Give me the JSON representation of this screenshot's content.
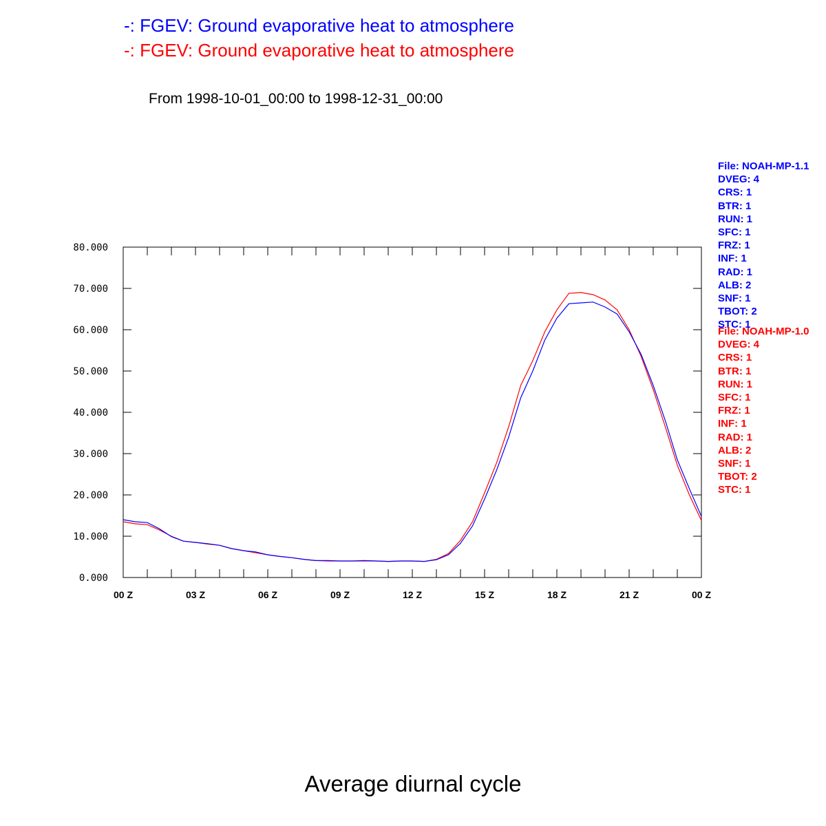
{
  "legend": [
    {
      "text": "-: FGEV: Ground evaporative heat to atmosphere",
      "color": "#0000ff"
    },
    {
      "text": "-: FGEV: Ground evaporative heat to atmosphere",
      "color": "#ff0000"
    }
  ],
  "period": "From 1998-10-01_00:00 to 1998-12-31_00:00",
  "meta_blue": [
    "File: NOAH-MP-1.1",
    "DVEG: 4",
    "CRS: 1",
    "BTR: 1",
    "RUN: 1",
    "SFC: 1",
    "FRZ: 1",
    "INF: 1",
    "RAD: 1",
    "ALB: 2",
    "SNF: 1",
    "TBOT: 2",
    "STC: 1"
  ],
  "meta_red": [
    "File: NOAH-MP-1.0",
    "DVEG: 4",
    "CRS: 1",
    "BTR: 1",
    "RUN: 1",
    "SFC: 1",
    "FRZ: 1",
    "INF: 1",
    "RAD: 1",
    "ALB: 2",
    "SNF: 1",
    "TBOT: 2",
    "STC: 1"
  ],
  "bottom_title": "Average diurnal cycle",
  "chart_data": {
    "type": "line",
    "x_unit": "hour",
    "xlim": [
      0,
      24
    ],
    "ylim": [
      0,
      80
    ],
    "grid": false,
    "yticks": [
      "0.000",
      "10.000",
      "20.000",
      "30.000",
      "40.000",
      "50.000",
      "60.000",
      "70.000",
      "80.000"
    ],
    "xticks": [
      "00 Z",
      "03 Z",
      "06 Z",
      "09 Z",
      "12 Z",
      "15 Z",
      "18 Z",
      "21 Z",
      "00 Z"
    ],
    "x": [
      0,
      0.5,
      1,
      1.5,
      2,
      2.5,
      3,
      3.5,
      4,
      4.5,
      5,
      5.5,
      6,
      6.5,
      7,
      7.5,
      8,
      8.5,
      9,
      9.5,
      10,
      10.5,
      11,
      11.5,
      12,
      12.5,
      13,
      13.5,
      14,
      14.5,
      15,
      15.5,
      16,
      16.5,
      17,
      17.5,
      18,
      18.5,
      19,
      19.5,
      20,
      20.5,
      21,
      21.5,
      22,
      22.5,
      23,
      23.5,
      24
    ],
    "series": [
      {
        "color": "#0000ff",
        "values": [
          14.0,
          13.5,
          13.3,
          11.8,
          9.9,
          8.8,
          8.5,
          8.2,
          7.8,
          7.0,
          6.5,
          6.2,
          5.5,
          5.1,
          4.8,
          4.4,
          4.1,
          4.1,
          4.0,
          4.0,
          4.1,
          4.0,
          3.9,
          4.0,
          4.0,
          3.9,
          4.3,
          5.5,
          8.3,
          12.5,
          19.0,
          26.0,
          34.0,
          43.5,
          50.0,
          57.5,
          62.8,
          66.3,
          66.5,
          66.7,
          65.5,
          63.8,
          59.5,
          54.0,
          46.5,
          38.0,
          28.5,
          21.5,
          14.8
        ]
      },
      {
        "color": "#ff0000",
        "values": [
          13.5,
          13.0,
          12.8,
          11.5,
          10.0,
          8.8,
          8.5,
          8.1,
          7.8,
          7.0,
          6.5,
          6.0,
          5.5,
          5.1,
          4.8,
          4.4,
          4.1,
          4.0,
          4.0,
          4.0,
          4.0,
          4.0,
          3.9,
          4.0,
          4.0,
          3.9,
          4.4,
          5.8,
          9.0,
          13.5,
          20.5,
          27.8,
          36.5,
          46.5,
          52.5,
          59.5,
          64.8,
          68.8,
          69.0,
          68.5,
          67.2,
          64.8,
          60.0,
          53.5,
          45.5,
          36.5,
          27.2,
          20.0,
          13.8
        ]
      }
    ]
  }
}
